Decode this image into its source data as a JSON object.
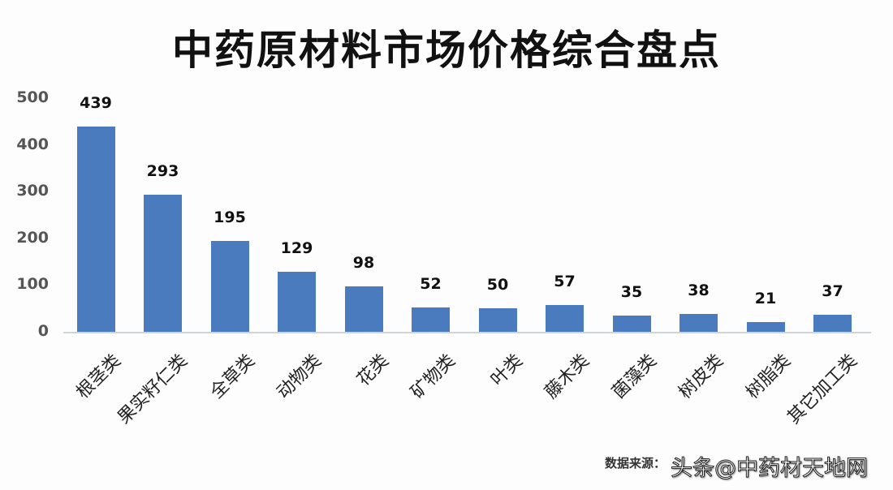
{
  "title": "中药原材料市场价格综合盘点",
  "chart_data": {
    "type": "bar",
    "title": "中药原材料市场价格综合盘点",
    "xlabel": "",
    "ylabel": "",
    "ylim": [
      0,
      500
    ],
    "yticks": [
      0,
      100,
      200,
      300,
      400,
      500
    ],
    "grid": false,
    "legend": null,
    "bar_color": "#4a7bbf",
    "categories": [
      "根茎类",
      "果实籽仁类",
      "全草类",
      "动物类",
      "花类",
      "矿物类",
      "叶类",
      "藤木类",
      "菌藻类",
      "树皮类",
      "树脂类",
      "其它加工类"
    ],
    "values": [
      439,
      293,
      195,
      129,
      98,
      52,
      50,
      57,
      35,
      38,
      21,
      37
    ]
  },
  "yticks_labels": [
    "500",
    "400",
    "300",
    "200",
    "100",
    "0"
  ],
  "source_text": "数据来源：",
  "watermark": "头条@中药材天地网"
}
